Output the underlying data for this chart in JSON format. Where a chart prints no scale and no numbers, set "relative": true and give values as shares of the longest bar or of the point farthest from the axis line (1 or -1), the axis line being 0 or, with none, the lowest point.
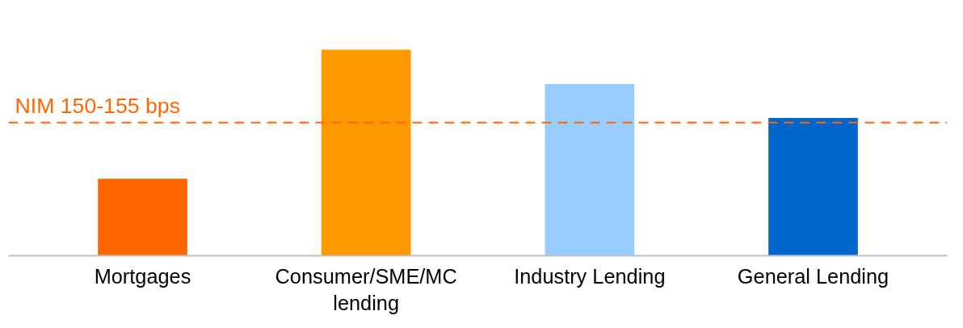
{
  "chart_data": {
    "type": "bar",
    "relative": true,
    "categories": [
      "Mortgages",
      "Consumer/SME/MC lending",
      "Industry Lending",
      "General Lending"
    ],
    "values": [
      0.374,
      1,
      0.833,
      0.669
    ],
    "colors": [
      "#ff6600",
      "#ff9900",
      "#99ccff",
      "#0066cc"
    ],
    "ref_lines": [
      {
        "axis": "y",
        "value": 0.646,
        "label": "NIM 150-155 bps",
        "color": "#ff6600",
        "line_style": "dashed"
      }
    ],
    "grid": false
  }
}
